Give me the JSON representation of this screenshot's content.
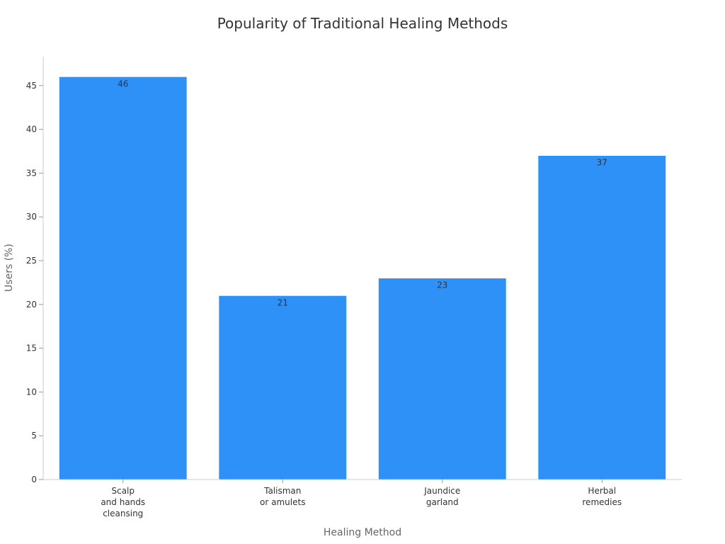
{
  "chart_data": {
    "type": "bar",
    "title": "Popularity of Traditional Healing Methods",
    "xlabel": "Healing Method",
    "ylabel": "Users (%)",
    "categories": [
      [
        "Scalp",
        "and hands",
        "cleansing"
      ],
      [
        "Talisman",
        "or amulets"
      ],
      [
        "Jaundice",
        "garland"
      ],
      [
        "Herbal",
        "remedies"
      ]
    ],
    "values": [
      46,
      21,
      23,
      37
    ],
    "ylim": [
      0,
      48.3
    ],
    "yticks": [
      0,
      5,
      10,
      15,
      20,
      25,
      30,
      35,
      40,
      45
    ],
    "bar_color": "#2e91f8",
    "grid": false,
    "legend": "none"
  }
}
